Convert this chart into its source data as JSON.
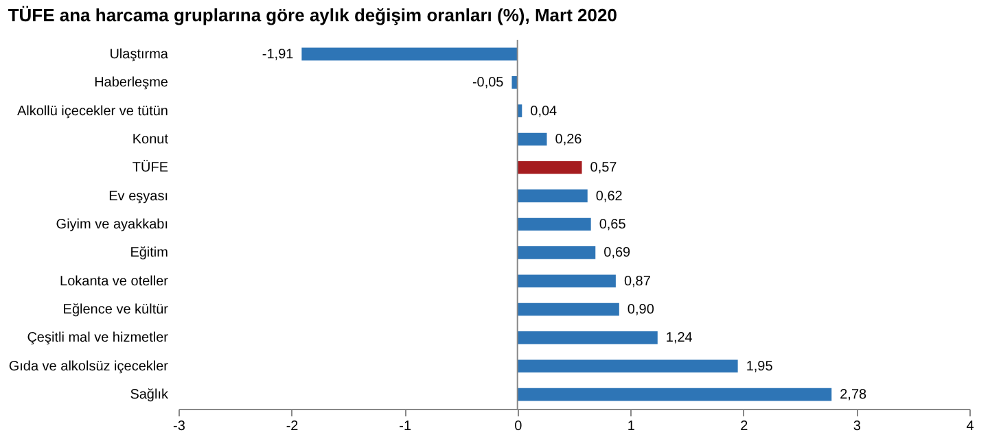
{
  "chart_data": {
    "type": "bar",
    "orientation": "horizontal",
    "title": "TÜFE ana harcama gruplarına göre aylık değişim oranları (%), Mart 2020",
    "categories": [
      "Ulaştırma",
      "Haberleşme",
      "Alkollü içecekler ve tütün",
      "Konut",
      "TÜFE",
      "Ev eşyası",
      "Giyim ve ayakkabı",
      "Eğitim",
      "Lokanta ve oteller",
      "Eğlence ve kültür",
      "Çeşitli mal ve hizmetler",
      "Gıda ve alkolsüz içecekler",
      "Sağlık"
    ],
    "values": [
      -1.91,
      -0.05,
      0.04,
      0.26,
      0.57,
      0.62,
      0.65,
      0.69,
      0.87,
      0.9,
      1.24,
      1.95,
      2.78
    ],
    "value_labels": [
      "-1,91",
      "-0,05",
      "0,04",
      "0,26",
      "0,57",
      "0,62",
      "0,65",
      "0,69",
      "0,87",
      "0,90",
      "1,24",
      "1,95",
      "2,78"
    ],
    "colors": [
      "#2e75b6",
      "#2e75b6",
      "#2e75b6",
      "#2e75b6",
      "#a51c1f",
      "#2e75b6",
      "#2e75b6",
      "#2e75b6",
      "#2e75b6",
      "#2e75b6",
      "#2e75b6",
      "#2e75b6",
      "#2e75b6"
    ],
    "xlim": [
      -3,
      4
    ],
    "xticks": [
      -3,
      -2,
      -1,
      0,
      1,
      2,
      3,
      4
    ]
  }
}
